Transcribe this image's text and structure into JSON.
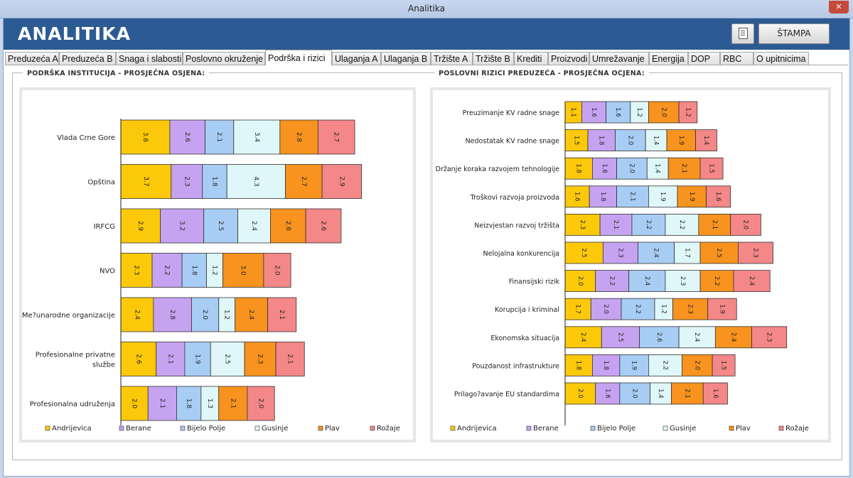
{
  "window": {
    "title": "Analitika",
    "close_glyph": "✕"
  },
  "app": {
    "title": "ANALITIKA",
    "print_label": "ŠTAMPA",
    "print_preview_icon": "document-icon"
  },
  "tabs": [
    {
      "label": "Preduzeća A"
    },
    {
      "label": "Preduzeća B"
    },
    {
      "label": "Snaga i slabosti"
    },
    {
      "label": "Poslovno okruženje"
    },
    {
      "label": "Podrška i rizici",
      "active": true
    },
    {
      "label": "Ulaganja A"
    },
    {
      "label": "Ulaganja B"
    },
    {
      "label": "Tržište A"
    },
    {
      "label": "Tržište B"
    },
    {
      "label": "Krediti"
    },
    {
      "label": "Proizvodi"
    },
    {
      "label": "Umrežavanje"
    },
    {
      "label": "Energija"
    },
    {
      "label": "DOP"
    },
    {
      "label": "RBC"
    },
    {
      "label": "O upitnicima"
    }
  ],
  "series_colors": [
    "#fcc90a",
    "#c6a3f1",
    "#a8cdf4",
    "#dff7f8",
    "#f7931e",
    "#f48788"
  ],
  "chart_data": [
    {
      "type": "bar",
      "orientation": "horizontal",
      "stacked": true,
      "title": "PODRŠKA INSTITUCIJA - PROSJEČNA OSJENA:",
      "legend_position": "bottom",
      "categories": [
        "Vlada Crne Gore",
        "Opština",
        "IRFCG",
        "NVO",
        "Me?unarodne organizacije",
        "Profesionalne privatne službe",
        "Profesionalna udruženja"
      ],
      "series": [
        {
          "name": "Andrijevica",
          "values": [
            3.6,
            3.7,
            2.9,
            2.3,
            2.4,
            2.6,
            2.0
          ]
        },
        {
          "name": "Berane",
          "values": [
            2.6,
            2.3,
            3.2,
            2.2,
            2.8,
            2.1,
            2.1
          ]
        },
        {
          "name": "Bijelo Polje",
          "values": [
            2.1,
            1.8,
            2.5,
            1.8,
            2.0,
            1.9,
            1.8
          ]
        },
        {
          "name": "Gusinje",
          "values": [
            3.4,
            4.3,
            2.4,
            1.2,
            1.2,
            2.5,
            1.3
          ]
        },
        {
          "name": "Plav",
          "values": [
            2.8,
            2.7,
            2.6,
            3.0,
            2.4,
            2.3,
            2.1
          ]
        },
        {
          "name": "Rožaje",
          "values": [
            2.7,
            2.9,
            2.6,
            2.0,
            2.1,
            2.1,
            2.0
          ]
        }
      ]
    },
    {
      "type": "bar",
      "orientation": "horizontal",
      "stacked": true,
      "title": "POSLOVNI RIZICI PREDUZEĆA - PROSJEČNA OCJENA:",
      "legend_position": "bottom",
      "categories": [
        "Preuzimanje KV radne snage",
        "Nedostatak KV radne snage",
        "Držanje koraka razvojem tehnologije",
        "Troškovi razvoja proizvoda",
        "Neizvjestan razvoj tržišta",
        "Nelojalna konkurencija",
        "Finansijski rizik",
        "Korupcija i kriminal",
        "Ekonomska situacija",
        "Pouzdanost infrastrukture",
        "Prilago?avanje EU standardima"
      ],
      "series": [
        {
          "name": "Andrijevica",
          "values": [
            1.1,
            1.5,
            1.8,
            1.6,
            2.3,
            2.5,
            2.0,
            1.7,
            2.4,
            1.8,
            2.0
          ]
        },
        {
          "name": "Berane",
          "values": [
            1.6,
            1.8,
            1.6,
            1.8,
            2.1,
            2.3,
            2.2,
            2.0,
            2.5,
            1.8,
            1.6
          ]
        },
        {
          "name": "Bijelo Polje",
          "values": [
            1.6,
            2.0,
            2.0,
            2.1,
            2.2,
            2.4,
            2.4,
            2.2,
            2.6,
            1.9,
            2.0
          ]
        },
        {
          "name": "Gusinje",
          "values": [
            1.2,
            1.4,
            1.4,
            1.9,
            2.2,
            1.7,
            2.3,
            1.2,
            2.4,
            2.2,
            1.4
          ]
        },
        {
          "name": "Plav",
          "values": [
            2.0,
            1.9,
            2.1,
            1.9,
            2.1,
            2.5,
            2.2,
            2.3,
            2.4,
            2.0,
            2.1
          ]
        },
        {
          "name": "Rožaje",
          "values": [
            1.2,
            1.4,
            1.5,
            1.6,
            2.0,
            2.3,
            2.4,
            1.9,
            2.3,
            1.5,
            1.6
          ]
        }
      ]
    }
  ]
}
